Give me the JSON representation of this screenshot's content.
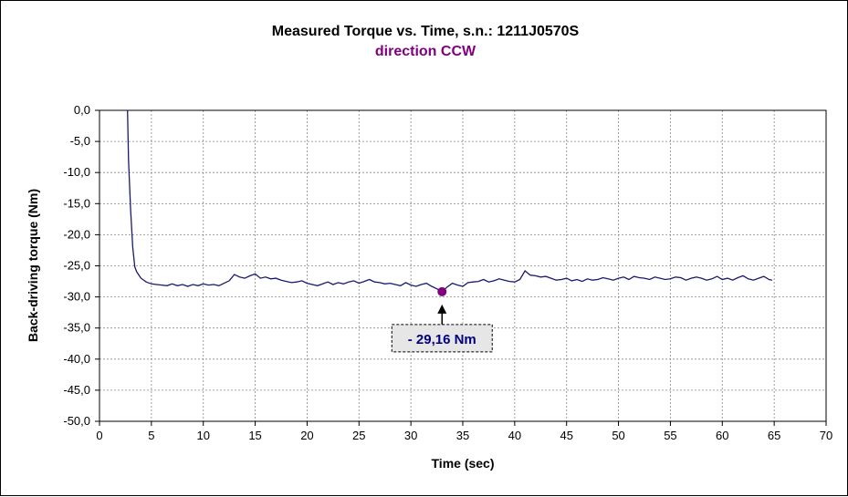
{
  "chart_data": {
    "type": "line",
    "title": "Measured Torque vs. Time, s.n.: 1211J0570S",
    "subtitle": "direction CCW",
    "xlabel": "Time (sec)",
    "ylabel": "Back-driving torque (Nm)",
    "xlim": [
      0,
      70
    ],
    "ylim": [
      -50,
      0
    ],
    "x_ticks": [
      "0",
      "5",
      "10",
      "15",
      "20",
      "25",
      "30",
      "35",
      "40",
      "45",
      "50",
      "55",
      "60",
      "65",
      "70"
    ],
    "y_ticks": [
      "0,0",
      "-5,0",
      "-10,0",
      "-15,0",
      "-20,0",
      "-25,0",
      "-30,0",
      "-35,0",
      "-40,0",
      "-45,0",
      "-50,0"
    ],
    "x_tick_values": [
      0,
      5,
      10,
      15,
      20,
      25,
      30,
      35,
      40,
      45,
      50,
      55,
      60,
      65,
      70
    ],
    "y_tick_values": [
      0,
      -5,
      -10,
      -15,
      -20,
      -25,
      -30,
      -35,
      -40,
      -45,
      -50
    ],
    "grid": true,
    "colors": {
      "line": "#1a1a6e",
      "subtitle": "#800080",
      "marker": "#800080",
      "callout_text": "#000080",
      "callout_bg": "#e6e6e6"
    },
    "series": [
      {
        "x": [
          2.7,
          2.8,
          3.0,
          3.2,
          3.4,
          3.6,
          3.8,
          4.0,
          4.5,
          5.0,
          5.5,
          6.0,
          6.5,
          7.0,
          7.5,
          8.0,
          8.5,
          9.0,
          9.5,
          10.0,
          10.5,
          11.0,
          11.5,
          12.0,
          12.5,
          13.0,
          13.5,
          14.0,
          14.5,
          15.0,
          15.5,
          16.0,
          16.5,
          17.0,
          17.5,
          18.0,
          18.5,
          19.0,
          19.5,
          20.0,
          20.5,
          21.0,
          21.5,
          22.0,
          22.5,
          23.0,
          23.5,
          24.0,
          24.5,
          25.0,
          25.5,
          26.0,
          26.5,
          27.0,
          27.5,
          28.0,
          28.5,
          29.0,
          29.5,
          30.0,
          30.5,
          31.0,
          31.5,
          32.0,
          32.5,
          33.0,
          33.5,
          34.0,
          34.5,
          35.0,
          35.5,
          36.0,
          36.5,
          37.0,
          37.5,
          38.0,
          38.5,
          39.0,
          39.5,
          40.0,
          40.5,
          41.0,
          41.5,
          42.0,
          42.5,
          43.0,
          43.5,
          44.0,
          44.5,
          45.0,
          45.5,
          46.0,
          46.5,
          47.0,
          47.5,
          48.0,
          48.5,
          49.0,
          49.5,
          50.0,
          50.5,
          51.0,
          51.5,
          52.0,
          52.5,
          53.0,
          53.5,
          54.0,
          54.5,
          55.0,
          55.5,
          56.0,
          56.5,
          57.0,
          57.5,
          58.0,
          58.5,
          59.0,
          59.5,
          60.0,
          60.5,
          61.0,
          61.5,
          62.0,
          62.5,
          63.0,
          63.5,
          64.0,
          64.5,
          64.8
        ],
        "y": [
          0.0,
          -8.0,
          -16.0,
          -22.0,
          -25.2,
          -26.0,
          -26.5,
          -27.0,
          -27.6,
          -27.9,
          -28.0,
          -28.1,
          -28.2,
          -27.9,
          -28.2,
          -28.0,
          -28.3,
          -28.0,
          -28.2,
          -27.9,
          -28.1,
          -28.0,
          -28.2,
          -27.8,
          -27.4,
          -26.4,
          -26.8,
          -27.0,
          -26.6,
          -26.3,
          -27.0,
          -26.8,
          -27.1,
          -27.0,
          -27.3,
          -27.5,
          -27.7,
          -27.6,
          -27.4,
          -27.8,
          -28.0,
          -28.2,
          -27.9,
          -27.6,
          -28.0,
          -27.7,
          -27.9,
          -27.6,
          -27.4,
          -27.8,
          -27.5,
          -27.2,
          -27.6,
          -27.7,
          -27.9,
          -27.8,
          -28.0,
          -28.2,
          -27.7,
          -28.1,
          -28.3,
          -28.0,
          -27.8,
          -28.3,
          -28.7,
          -29.16,
          -28.4,
          -27.8,
          -28.1,
          -28.3,
          -27.7,
          -27.6,
          -27.5,
          -27.2,
          -27.6,
          -27.4,
          -27.1,
          -27.3,
          -27.5,
          -27.6,
          -27.2,
          -25.8,
          -26.5,
          -26.6,
          -26.8,
          -26.7,
          -27.0,
          -27.3,
          -27.2,
          -27.0,
          -27.4,
          -27.2,
          -27.5,
          -27.1,
          -27.3,
          -27.2,
          -26.9,
          -27.1,
          -27.3,
          -27.0,
          -26.8,
          -27.2,
          -26.7,
          -26.9,
          -27.0,
          -27.2,
          -26.8,
          -27.0,
          -27.2,
          -27.1,
          -26.8,
          -26.9,
          -27.3,
          -27.0,
          -26.8,
          -27.0,
          -27.3,
          -27.1,
          -26.7,
          -27.2,
          -27.0,
          -27.3,
          -26.9,
          -26.6,
          -27.1,
          -27.3,
          -27.0,
          -26.7,
          -27.2,
          -27.3
        ]
      }
    ],
    "annotation": {
      "text": "- 29,16 Nm",
      "x": 33.0,
      "y": -29.16
    }
  }
}
